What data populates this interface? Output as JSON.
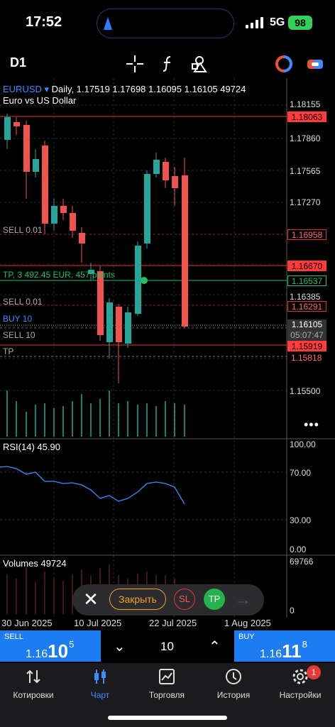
{
  "status": {
    "time": "17:52",
    "network": "5G",
    "battery": "98"
  },
  "toolbar": {
    "timeframe": "D1",
    "icons": [
      "crosshair-icon",
      "function-icon",
      "objects-icon",
      "indicators-icon",
      "switch-account-icon"
    ]
  },
  "chart": {
    "symbol": "EURUSD",
    "ohlc": "Daily, 1.17519 1.17698 1.16095 1.16105 49724",
    "description": "Euro vs US Dollar",
    "price_scale": [
      "1.18155",
      "1.17860",
      "1.17565",
      "1.17270",
      "1.16385",
      "1.15500"
    ],
    "price_tags": [
      {
        "value": "1.18063",
        "style": "solid"
      },
      {
        "value": "1.16958",
        "style": "outline"
      },
      {
        "value": "1.16670",
        "style": "solid"
      },
      {
        "value": "1.16537",
        "style": "green"
      },
      {
        "value": "1.16291",
        "style": "outline"
      },
      {
        "value": "1.15919",
        "style": "solid"
      },
      {
        "value": "1.15818",
        "style": "plain"
      }
    ],
    "bid": "1.16105",
    "countdown": "05:07:47",
    "levels": {
      "sell1": "SELL 0.01",
      "tp": "TP, 3 492.45 EUR, 457 points",
      "sell2": "SELL 0.01",
      "buy": "BUY 10",
      "sell3": "SELL 10",
      "tp2": "TP"
    },
    "dates": [
      "30 Jun 2025",
      "10 Jul 2025",
      "22 Jul 2025",
      "1 Aug 2025"
    ]
  },
  "rsi": {
    "label": "RSI(14) 45.90",
    "scale": [
      "100.00",
      "70.00",
      "30.00",
      "0.00"
    ]
  },
  "volumes": {
    "label": "Volumes 49724",
    "scale": [
      "69766",
      "0"
    ]
  },
  "panel": {
    "close_icon": "close-icon",
    "close_label": "Закрыть",
    "sl": "SL",
    "tp": "TP"
  },
  "trade": {
    "sell_label": "SELL",
    "sell_price_small": "1.16",
    "sell_price_big": "10",
    "sell_price_sup": "5",
    "lot": "10",
    "buy_label": "BUY",
    "buy_price_small": "1.16",
    "buy_price_big": "11",
    "buy_price_sup": "8"
  },
  "nav": [
    {
      "label": "Котировки",
      "icon": "quotes-icon"
    },
    {
      "label": "Чарт",
      "icon": "chart-icon"
    },
    {
      "label": "Торговля",
      "icon": "trade-icon"
    },
    {
      "label": "История",
      "icon": "history-icon"
    },
    {
      "label": "Настройки",
      "icon": "settings-icon"
    }
  ],
  "settings_badge": "1",
  "colors": {
    "bull": "#26a69a",
    "bear": "#ef5350",
    "accent": "#1e7cf2"
  }
}
